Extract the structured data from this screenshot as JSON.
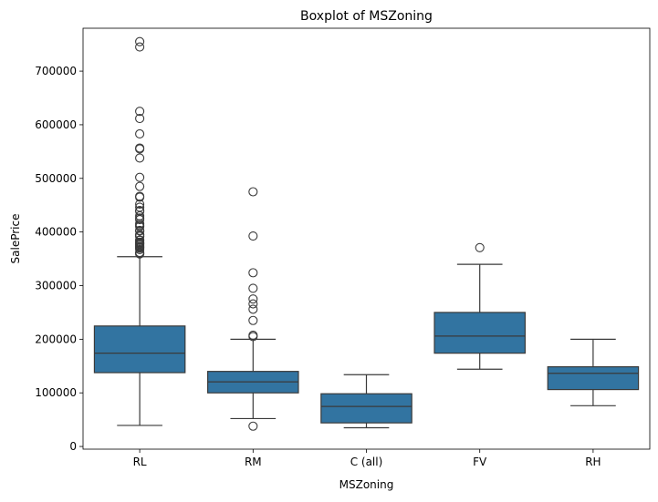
{
  "chart_data": {
    "type": "box",
    "title": "Boxplot of MSZoning",
    "xlabel": "MSZoning",
    "ylabel": "SalePrice",
    "ylim": [
      -5000,
      780000
    ],
    "yticks": [
      0,
      100000,
      200000,
      300000,
      400000,
      500000,
      600000,
      700000
    ],
    "ytick_labels": [
      "0",
      "100000",
      "200000",
      "300000",
      "400000",
      "500000",
      "600000",
      "700000"
    ],
    "grid": false,
    "box_color": "#3274a1",
    "line_color": "#3a3a3a",
    "categories": [
      "RL",
      "RM",
      "C (all)",
      "FV",
      "RH"
    ],
    "boxes": [
      {
        "category": "RL",
        "whisker_low": 39300,
        "q1": 137700,
        "median": 174000,
        "q3": 224700,
        "whisker_high": 354000,
        "outliers": [
          755000,
          745000,
          625000,
          611657,
          582933,
          556581,
          555000,
          538000,
          501837,
          485000,
          466500,
          465000,
          451950,
          446261,
          440000,
          438780,
          430000,
          426000,
          423000,
          415298,
          412500,
          410000,
          402861,
          402000,
          395000,
          394617,
          392500,
          392000,
          385000,
          384500,
          381000,
          380000,
          378500,
          377500,
          377426,
          375000,
          372500,
          372402,
          370878,
          369900,
          367294,
          361919,
          360000,
          359100
        ]
      },
      {
        "category": "RM",
        "whisker_low": 52000,
        "q1": 100000,
        "median": 120500,
        "q3": 140000,
        "whisker_high": 200000,
        "outliers": [
          475000,
          392500,
          324000,
          295000,
          275000,
          265979,
          256000,
          235000,
          207500,
          205000,
          37900
        ]
      },
      {
        "category": "C (all)",
        "whisker_low": 34900,
        "q1": 43998,
        "median": 74700,
        "q3": 98332,
        "whisker_high": 133900,
        "outliers": []
      },
      {
        "category": "FV",
        "whisker_low": 144152,
        "q1": 174000,
        "median": 205950,
        "q3": 250000,
        "whisker_high": 339750,
        "outliers": [
          370878
        ]
      },
      {
        "category": "RH",
        "whisker_low": 76000,
        "q1": 106150,
        "median": 136500,
        "q3": 148608,
        "whisker_high": 200000,
        "outliers": []
      }
    ]
  }
}
